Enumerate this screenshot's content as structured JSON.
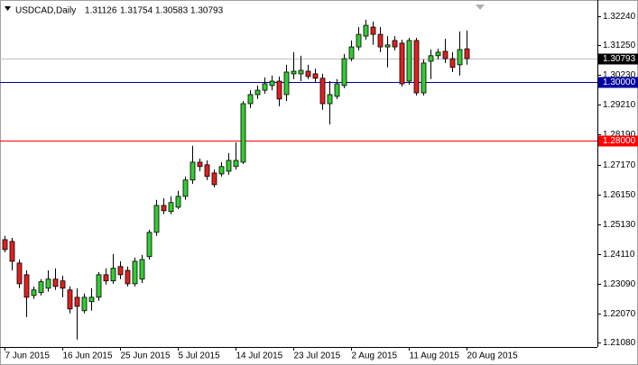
{
  "chart_data": {
    "type": "candlestick",
    "symbol": "USDCAD,Daily",
    "categories": [
      "7 Jun 2015",
      null,
      null,
      null,
      null,
      null,
      null,
      null,
      "16 Jun 2015",
      null,
      null,
      null,
      null,
      null,
      null,
      null,
      "25 Jun 2015",
      null,
      null,
      null,
      null,
      null,
      null,
      null,
      "5 Jul 2015",
      null,
      null,
      null,
      null,
      null,
      null,
      null,
      "14 Jul 2015",
      null,
      null,
      null,
      null,
      null,
      null,
      null,
      "23 Jul 2015",
      null,
      null,
      null,
      null,
      null,
      null,
      null,
      "2 Aug 2015",
      null,
      null,
      null,
      null,
      null,
      null,
      null,
      "11 Aug 2015",
      null,
      null,
      null,
      null,
      null,
      null,
      null,
      "20 Aug 2015"
    ],
    "open": [
      1.246,
      1.2454,
      1.238,
      1.234,
      1.2269,
      1.2279,
      1.2294,
      1.2325,
      1.2319,
      1.2288,
      1.2263,
      1.2217,
      1.2248,
      1.2263,
      1.234,
      1.2319,
      1.2368,
      1.2355,
      1.2309,
      1.2325,
      1.2402,
      1.2485,
      1.2577,
      1.2556,
      1.2571,
      1.2608,
      1.2664,
      1.2725,
      1.2716,
      1.2688,
      1.2685,
      1.2694,
      1.271,
      1.2725,
      1.2925,
      1.2956,
      1.2971,
      1.2987,
      1.3002,
      1.2956,
      1.3027,
      1.3027,
      1.3036,
      1.3027,
      1.3012,
      1.2925,
      1.295,
      1.2987,
      1.3079,
      1.3119,
      1.3156,
      1.3187,
      1.3162,
      1.3119,
      1.3141,
      1.3132,
      1.3002,
      1.3141,
      1.2962,
      1.307,
      1.3089,
      1.3104,
      1.3079,
      1.3058,
      1.31126
    ],
    "high": [
      1.2473,
      1.2466,
      1.2392,
      1.2355,
      1.23,
      1.2325,
      1.2355,
      1.2362,
      1.2337,
      1.23,
      1.2294,
      1.2276,
      1.2294,
      1.2349,
      1.2362,
      1.2411,
      1.2386,
      1.2368,
      1.2399,
      1.2408,
      1.2494,
      1.2596,
      1.2602,
      1.2608,
      1.2627,
      1.2676,
      1.2781,
      1.2737,
      1.2731,
      1.27,
      1.2725,
      1.2756,
      1.2793,
      1.2934,
      1.2971,
      1.2987,
      1.3015,
      1.3021,
      1.3018,
      1.3058,
      1.3101,
      1.3089,
      1.3058,
      1.3045,
      1.3027,
      1.3002,
      1.3009,
      1.3095,
      1.3141,
      1.3187,
      1.3212,
      1.3206,
      1.3187,
      1.3156,
      1.3156,
      1.3144,
      1.315,
      1.315,
      1.3076,
      1.311,
      1.3113,
      1.3147,
      1.3101,
      1.3172,
      1.31754
    ],
    "low": [
      1.2417,
      1.2355,
      1.2294,
      1.2195,
      1.2257,
      1.2269,
      1.2282,
      1.2288,
      1.2263,
      1.2208,
      1.2118,
      1.2208,
      1.2217,
      1.2251,
      1.2306,
      1.2309,
      1.2325,
      1.23,
      1.23,
      1.2312,
      1.2392,
      1.2473,
      1.2547,
      1.2547,
      1.2565,
      1.2596,
      1.2651,
      1.2694,
      1.2664,
      1.2639,
      1.2676,
      1.2682,
      1.27,
      1.2719,
      1.291,
      1.2941,
      1.2959,
      1.2971,
      1.2916,
      1.2934,
      1.3009,
      1.3002,
      1.3009,
      1.2996,
      1.2904,
      1.2854,
      1.2941,
      1.2978,
      1.307,
      1.3107,
      1.3144,
      1.3126,
      1.3101,
      1.3049,
      1.3107,
      1.2984,
      1.299,
      1.2953,
      1.2953,
      1.3009,
      1.3076,
      1.3064,
      1.3033,
      1.3021,
      1.30583
    ],
    "close": [
      1.2426,
      1.2386,
      1.2309,
      1.2263,
      1.2288,
      1.2316,
      1.2325,
      1.23,
      1.2294,
      1.2223,
      1.2232,
      1.2263,
      1.2263,
      1.234,
      1.2319,
      1.2362,
      1.234,
      1.2309,
      1.2386,
      1.2392,
      1.2485,
      1.2577,
      1.2559,
      1.2587,
      1.2608,
      1.2664,
      1.2725,
      1.271,
      1.2676,
      1.2648,
      1.271,
      1.2731,
      1.2731,
      1.2925,
      1.2956,
      1.2971,
      1.2993,
      1.3002,
      1.2941,
      1.3033,
      1.3036,
      1.3039,
      1.3018,
      1.3012,
      1.2925,
      1.2956,
      1.2993,
      1.3079,
      1.3119,
      1.3162,
      1.3193,
      1.3162,
      1.3119,
      1.3126,
      1.3119,
      1.2993,
      1.3141,
      1.2962,
      1.3064,
      1.3089,
      1.3101,
      1.3079,
      1.3049,
      1.311,
      1.30793
    ],
    "up_color": "#33cc33",
    "down_color": "#e02020",
    "ylim": [
      1.2093,
      1.32795
    ],
    "yticks": [
      {
        "value": 1.3224,
        "label": "1.32240"
      },
      {
        "value": 1.3125,
        "label": "1.31250"
      },
      {
        "value": 1.3023,
        "label": "1.30230"
      },
      {
        "value": 1.2921,
        "label": "1.29210"
      },
      {
        "value": 1.2819,
        "label": "1.28190"
      },
      {
        "value": 1.2717,
        "label": "1.27170"
      },
      {
        "value": 1.2615,
        "label": "1.26150"
      },
      {
        "value": 1.2513,
        "label": "1.25130"
      },
      {
        "value": 1.2411,
        "label": "1.24110"
      },
      {
        "value": 1.2309,
        "label": "1.23090"
      },
      {
        "value": 1.2207,
        "label": "1.22070"
      },
      {
        "value": 1.2108,
        "label": "1.21080"
      }
    ],
    "price_lines": [
      {
        "value": 1.3,
        "label": "1.30000",
        "color": "#0000a0"
      },
      {
        "value": 1.28,
        "label": "1.28000",
        "color": "#ff0000"
      }
    ],
    "last_price_color": "#c0c0c0"
  }
}
